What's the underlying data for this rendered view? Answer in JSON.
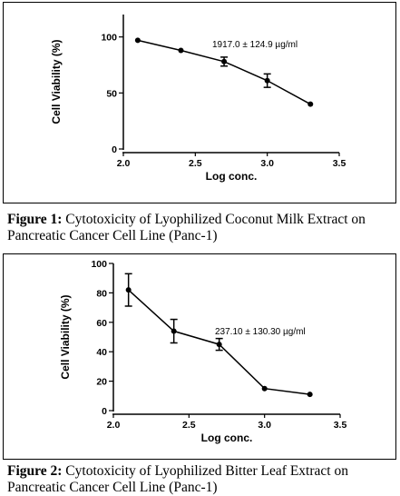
{
  "chart_data": [
    {
      "type": "line",
      "xlabel": "Log conc.",
      "ylabel": "Cell Viability (%)",
      "xlim": [
        2.0,
        3.5
      ],
      "ylim": [
        0,
        120
      ],
      "xticks": [
        2.0,
        2.5,
        3.0,
        3.5
      ],
      "xtick_labels": [
        "2.0",
        "2.5",
        "3.0",
        "3.5"
      ],
      "yticks": [
        0,
        50,
        100
      ],
      "ytick_labels": [
        "0",
        "50",
        "100"
      ],
      "annotation": "1917.0 ± 124.9 µg/ml",
      "grid": false,
      "series": [
        {
          "x": [
            2.1,
            2.4,
            2.7,
            3.0,
            3.3
          ],
          "y": [
            97,
            88,
            78,
            61,
            40
          ],
          "err": [
            0,
            0,
            4,
            6,
            0
          ]
        }
      ]
    },
    {
      "type": "line",
      "xlabel": "Log conc.",
      "ylabel": "Cell Viability (%)",
      "xlim": [
        2.0,
        3.5
      ],
      "ylim": [
        0,
        100
      ],
      "xticks": [
        2.0,
        2.5,
        3.0,
        3.5
      ],
      "xtick_labels": [
        "2.0",
        "2.5",
        "3.0",
        "3.5"
      ],
      "yticks": [
        0,
        20,
        40,
        60,
        80,
        100
      ],
      "ytick_labels": [
        "0",
        "20",
        "40",
        "60",
        "80",
        "100"
      ],
      "annotation": "237.10 ± 130.30 µg/ml",
      "grid": false,
      "series": [
        {
          "x": [
            2.1,
            2.4,
            2.7,
            3.0,
            3.3
          ],
          "y": [
            82,
            54,
            45,
            15,
            11
          ],
          "err": [
            11,
            8,
            4,
            0,
            0
          ]
        }
      ]
    }
  ],
  "captions": [
    {
      "label": "Figure 1:",
      "text": " Cytotoxicity of Lyophilized Coconut Milk Extract on Pancreatic Cancer Cell Line (Panc-1)"
    },
    {
      "label": "Figure 2:",
      "text": " Cytotoxicity of Lyophilized Bitter Leaf Extract on Pancreatic Cancer Cell Line (Panc-1)"
    }
  ]
}
